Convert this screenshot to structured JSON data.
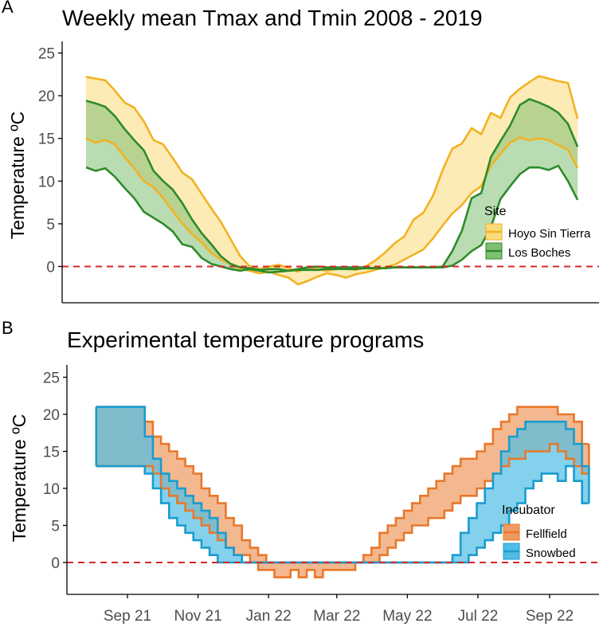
{
  "colors": {
    "hoyo_line": "#F2B222",
    "hoyo_fill": "#FBDB7A",
    "boches_line": "#2E8B2A",
    "boches_fill": "#7FBF72",
    "fellfield_line": "#E8782A",
    "fellfield_fill": "#EE9A60",
    "snowbed_line": "#1A9CCF",
    "snowbed_fill": "#4FBDE6",
    "zero_line": "#D62728",
    "axis": "#000000",
    "tick_label": "#4D4D4D"
  },
  "chart_data": [
    {
      "panel": "A",
      "type": "area",
      "title": "Weekly mean Tmax and Tmin 2008 - 2019",
      "ylabel": "Temperature ºC",
      "xlabel": "",
      "ylim": [
        -4.3,
        26
      ],
      "yticks": [
        0,
        5,
        10,
        15,
        20,
        25
      ],
      "grid": false,
      "legend": {
        "title": "Site",
        "position": "right",
        "entries": [
          "Hoyo Sin Tierra",
          "Los Boches"
        ]
      },
      "reference_line": {
        "y": 0,
        "style": "dashed"
      },
      "x_weeks": [
        0,
        1,
        2,
        3,
        4,
        5,
        6,
        7,
        8,
        9,
        10,
        11,
        12,
        13,
        14,
        15,
        16,
        17,
        18,
        19,
        20,
        21,
        22,
        23,
        24,
        25,
        26,
        27,
        28,
        29,
        30,
        31,
        32,
        33,
        34,
        35,
        36,
        37,
        38,
        39,
        40,
        41,
        42,
        43,
        44,
        45,
        46,
        47,
        48,
        49,
        50,
        51
      ],
      "series": [
        {
          "name": "Hoyo Sin Tierra",
          "tmax": [
            22.2,
            22.0,
            21.8,
            20.6,
            19.2,
            18.6,
            17.0,
            14.8,
            14.3,
            12.7,
            11.0,
            10.2,
            8.5,
            6.8,
            5.2,
            3.2,
            1.2,
            0.0,
            -0.3,
            0.0,
            0.2,
            -0.2,
            -0.6,
            0.0,
            -0.3,
            -0.5,
            -0.3,
            -0.3,
            -0.4,
            0.0,
            0.7,
            1.6,
            2.7,
            3.5,
            5.5,
            6.3,
            8.3,
            11.3,
            13.8,
            14.4,
            16.2,
            15.5,
            18.0,
            17.4,
            19.8,
            20.8,
            21.6,
            22.3,
            22.0,
            21.7,
            21.5,
            17.3
          ],
          "tmin": [
            15.0,
            14.5,
            14.8,
            14.3,
            12.8,
            11.5,
            10.0,
            9.3,
            8.0,
            6.5,
            5.0,
            3.8,
            2.8,
            1.6,
            0.8,
            0.3,
            -0.3,
            -0.5,
            -0.8,
            -0.6,
            -1.0,
            -1.3,
            -2.1,
            -1.7,
            -1.2,
            -0.8,
            -1.0,
            -1.3,
            -0.9,
            -0.7,
            -0.4,
            -0.1,
            0.2,
            0.8,
            1.4,
            2.0,
            3.3,
            4.8,
            6.2,
            7.2,
            8.6,
            9.4,
            11.8,
            13.2,
            14.5,
            15.1,
            14.8,
            15.0,
            14.8,
            14.2,
            13.7,
            11.5
          ]
        },
        {
          "name": "Los Boches",
          "tmax": [
            19.4,
            19.1,
            18.7,
            17.6,
            16.1,
            14.8,
            13.6,
            11.2,
            10.0,
            9.0,
            7.4,
            5.5,
            3.9,
            2.6,
            1.2,
            0.3,
            -0.1,
            -0.2,
            -0.4,
            -0.3,
            -0.3,
            -0.5,
            -0.3,
            -0.1,
            0.0,
            -0.1,
            -0.1,
            -0.1,
            -0.1,
            -0.1,
            -0.2,
            -0.2,
            -0.1,
            -0.1,
            -0.1,
            -0.1,
            -0.1,
            0.0,
            1.8,
            4.2,
            8.0,
            8.6,
            12.8,
            14.7,
            16.5,
            18.9,
            19.6,
            19.2,
            18.7,
            18.0,
            16.7,
            14.0
          ],
          "tmin": [
            11.6,
            11.2,
            11.5,
            10.5,
            9.2,
            8.0,
            6.4,
            5.7,
            5.0,
            4.1,
            2.6,
            2.3,
            1.0,
            0.3,
            0.0,
            -0.3,
            -0.5,
            -0.3,
            -0.5,
            -0.7,
            -0.6,
            -0.5,
            -0.4,
            -0.4,
            -0.4,
            -0.3,
            -0.3,
            -0.3,
            -0.3,
            -0.2,
            -0.2,
            -0.2,
            -0.1,
            -0.1,
            -0.1,
            -0.1,
            -0.1,
            -0.1,
            0.1,
            0.8,
            1.8,
            2.5,
            4.6,
            7.9,
            9.4,
            10.8,
            11.6,
            11.6,
            11.3,
            11.8,
            10.0,
            7.8
          ]
        }
      ]
    },
    {
      "panel": "B",
      "type": "area",
      "title": "Experimental temperature programs",
      "ylabel": "Temperature ºC",
      "xlabel": "",
      "ylim": [
        -4.3,
        26
      ],
      "yticks": [
        0,
        5,
        10,
        15,
        20,
        25
      ],
      "grid": false,
      "x_start": "2021-08-05",
      "x_end": "2022-10-05",
      "xticks": [
        {
          "date": "2021-09-01",
          "label": "Sep 21"
        },
        {
          "date": "2021-11-01",
          "label": "Nov 21"
        },
        {
          "date": "2022-01-01",
          "label": "Jan 22"
        },
        {
          "date": "2022-03-01",
          "label": "Mar 22"
        },
        {
          "date": "2022-05-01",
          "label": "May 22"
        },
        {
          "date": "2022-07-01",
          "label": "Jul 22"
        },
        {
          "date": "2022-09-01",
          "label": "Sep 22"
        }
      ],
      "legend": {
        "title": "Incubator",
        "position": "right",
        "entries": [
          "Fellfield",
          "Snowbed"
        ]
      },
      "reference_line": {
        "y": 0,
        "style": "dashed"
      },
      "step": true,
      "series": [
        {
          "name": "Fellfield",
          "dates": [
            "2021-08-05",
            "2021-08-12",
            "2021-08-19",
            "2021-08-26",
            "2021-09-02",
            "2021-09-09",
            "2021-09-16",
            "2021-09-23",
            "2021-09-30",
            "2021-10-07",
            "2021-10-14",
            "2021-10-21",
            "2021-10-28",
            "2021-11-04",
            "2021-11-11",
            "2021-11-18",
            "2021-11-25",
            "2021-12-02",
            "2021-12-09",
            "2021-12-16",
            "2021-12-23",
            "2021-12-30",
            "2022-01-06",
            "2022-01-13",
            "2022-01-20",
            "2022-01-27",
            "2022-02-03",
            "2022-02-10",
            "2022-02-17",
            "2022-02-24",
            "2022-03-03",
            "2022-03-10",
            "2022-03-17",
            "2022-03-24",
            "2022-03-31",
            "2022-04-07",
            "2022-04-14",
            "2022-04-21",
            "2022-04-28",
            "2022-05-05",
            "2022-05-12",
            "2022-05-19",
            "2022-05-26",
            "2022-06-02",
            "2022-06-09",
            "2022-06-16",
            "2022-06-23",
            "2022-06-30",
            "2022-07-07",
            "2022-07-14",
            "2022-07-21",
            "2022-07-28",
            "2022-08-04",
            "2022-08-11",
            "2022-08-18",
            "2022-08-25",
            "2022-09-01",
            "2022-09-08",
            "2022-09-15",
            "2022-09-22",
            "2022-09-29"
          ],
          "tmax": [
            21,
            21,
            21,
            21,
            21,
            21,
            19,
            17,
            16,
            15,
            14,
            13,
            12,
            10,
            9,
            8,
            6,
            5,
            3,
            2,
            1,
            0,
            0,
            0,
            0,
            0,
            0,
            0,
            0,
            0,
            0,
            0,
            0,
            1,
            2,
            4,
            5,
            6,
            7,
            8,
            9,
            10,
            11,
            12,
            13,
            14,
            14,
            15,
            16,
            18,
            19,
            20,
            21,
            21,
            21,
            21,
            21,
            20,
            20,
            19,
            16
          ],
          "tmin": [
            13,
            13,
            13,
            13,
            13,
            13,
            13,
            12,
            10,
            9,
            8,
            7,
            6,
            5,
            4,
            3,
            2,
            1,
            1,
            0,
            -1,
            -1,
            -2,
            -2,
            -1,
            -2,
            -1,
            -2,
            -1,
            -1,
            -1,
            -1,
            0,
            0,
            0,
            1,
            2,
            3,
            4,
            5,
            5,
            6,
            6,
            7,
            8,
            9,
            9,
            10,
            11,
            12,
            13,
            14,
            14,
            15,
            15,
            15,
            16,
            15,
            14,
            13,
            12
          ]
        },
        {
          "name": "Snowbed",
          "dates": [
            "2021-08-05",
            "2021-08-12",
            "2021-08-19",
            "2021-08-26",
            "2021-09-02",
            "2021-09-09",
            "2021-09-16",
            "2021-09-23",
            "2021-09-30",
            "2021-10-07",
            "2021-10-14",
            "2021-10-21",
            "2021-10-28",
            "2021-11-04",
            "2021-11-11",
            "2021-11-18",
            "2021-11-25",
            "2021-12-02",
            "2021-12-09",
            "2021-12-16",
            "2021-12-23",
            "2021-12-30",
            "2022-01-06",
            "2022-01-13",
            "2022-01-20",
            "2022-01-27",
            "2022-02-03",
            "2022-02-10",
            "2022-02-17",
            "2022-02-24",
            "2022-03-03",
            "2022-03-10",
            "2022-03-17",
            "2022-03-24",
            "2022-03-31",
            "2022-04-07",
            "2022-04-14",
            "2022-04-21",
            "2022-04-28",
            "2022-05-05",
            "2022-05-12",
            "2022-05-19",
            "2022-05-26",
            "2022-06-02",
            "2022-06-09",
            "2022-06-16",
            "2022-06-23",
            "2022-06-30",
            "2022-07-07",
            "2022-07-14",
            "2022-07-21",
            "2022-07-28",
            "2022-08-04",
            "2022-08-11",
            "2022-08-18",
            "2022-08-25",
            "2022-09-01",
            "2022-09-08",
            "2022-09-15",
            "2022-09-22",
            "2022-09-29"
          ],
          "tmax": [
            21,
            21,
            21,
            21,
            21,
            21,
            17,
            14,
            12,
            11,
            10,
            9,
            8,
            7,
            6,
            4,
            2,
            1,
            0,
            0,
            0,
            0,
            0,
            0,
            0,
            0,
            0,
            0,
            0,
            0,
            0,
            0,
            0,
            0,
            0,
            0,
            0,
            0,
            0,
            0,
            0,
            0,
            0,
            0,
            1,
            4,
            6,
            8,
            10,
            12,
            15,
            17,
            18,
            19,
            19,
            19,
            19,
            19,
            18,
            16,
            13
          ],
          "tmin": [
            13,
            13,
            13,
            13,
            13,
            13,
            12,
            10,
            8,
            6,
            5,
            4,
            3,
            2,
            1,
            0,
            0,
            0,
            0,
            0,
            0,
            0,
            0,
            0,
            0,
            0,
            0,
            0,
            0,
            0,
            0,
            0,
            0,
            0,
            0,
            0,
            0,
            0,
            0,
            0,
            0,
            0,
            0,
            0,
            0,
            0,
            1,
            2,
            3,
            4,
            5,
            7,
            8,
            10,
            11,
            12,
            12,
            11,
            13,
            11,
            8
          ]
        }
      ]
    }
  ],
  "panel_labels": [
    "A",
    "B"
  ]
}
